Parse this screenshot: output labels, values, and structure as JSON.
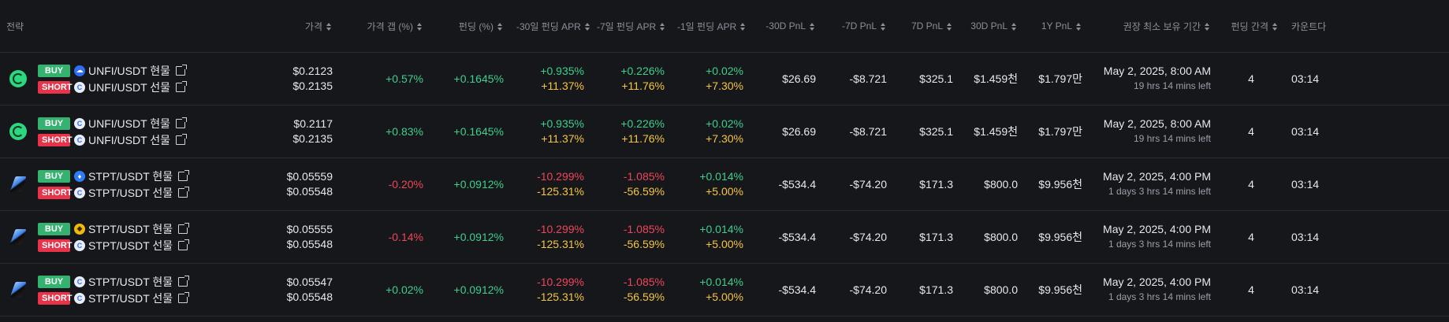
{
  "headers": {
    "strategy": "전략",
    "price": "가격",
    "price_gap": "가격 갭 (%)",
    "funding": "펀딩 (%)",
    "apr30": "-30일 펀딩 APR",
    "apr7": "-7일 펀딩 APR",
    "apr1": "-1일 펀딩 APR",
    "pnl30neg": "-30D PnL",
    "pnl7neg": "-7D PnL",
    "pnl7": "7D PnL",
    "pnl30": "30D PnL",
    "pnl1y": "1Y PnL",
    "hold": "권장 최소 보유 기간",
    "interval": "펀딩 간격",
    "countdown": "카운트다"
  },
  "rows": [
    {
      "coin_icon": "unfi-coin-icon",
      "buy_badge": "BUY",
      "short_badge": "SHORT",
      "buy_exchange_icon": "cloud-exchange-icon",
      "short_exchange_icon": "futures-exchange-icon",
      "buy_pair": "UNFI/USDT 현물",
      "short_pair": "UNFI/USDT 선물",
      "price_buy": "$0.2123",
      "price_short": "$0.2135",
      "gap": "+0.57%",
      "funding": "+0.1645%",
      "apr30_a": "+0.935%",
      "apr30_b": "+11.37%",
      "apr7_a": "+0.226%",
      "apr7_b": "+11.76%",
      "apr1_a": "+0.02%",
      "apr1_b": "+7.30%",
      "pnl30neg": "$26.69",
      "pnl7neg": "-$8.721",
      "pnl7": "$325.1",
      "pnl30": "$1.459천",
      "pnl1y": "$1.797만",
      "hold_date": "May 2, 2025, 8:00 AM",
      "hold_left": "19 hrs 14 mins left",
      "interval": "4",
      "countdown": "03:14"
    },
    {
      "coin_icon": "unfi-coin-icon",
      "buy_badge": "BUY",
      "short_badge": "SHORT",
      "buy_exchange_icon": "futures-exchange-icon",
      "short_exchange_icon": "futures-exchange-icon",
      "buy_pair": "UNFI/USDT 현물",
      "short_pair": "UNFI/USDT 선물",
      "price_buy": "$0.2117",
      "price_short": "$0.2135",
      "gap": "+0.83%",
      "funding": "+0.1645%",
      "apr30_a": "+0.935%",
      "apr30_b": "+11.37%",
      "apr7_a": "+0.226%",
      "apr7_b": "+11.76%",
      "apr1_a": "+0.02%",
      "apr1_b": "+7.30%",
      "pnl30neg": "$26.69",
      "pnl7neg": "-$8.721",
      "pnl7": "$325.1",
      "pnl30": "$1.459천",
      "pnl1y": "$1.797만",
      "hold_date": "May 2, 2025, 8:00 AM",
      "hold_left": "19 hrs 14 mins left",
      "interval": "4",
      "countdown": "03:14"
    },
    {
      "coin_icon": "stpt-coin-icon",
      "buy_badge": "BUY",
      "short_badge": "SHORT",
      "buy_exchange_icon": "flame-exchange-icon",
      "short_exchange_icon": "futures-exchange-icon",
      "buy_pair": "STPT/USDT 현물",
      "short_pair": "STPT/USDT 선물",
      "price_buy": "$0.05559",
      "price_short": "$0.05548",
      "gap": "-0.20%",
      "funding": "+0.0912%",
      "apr30_a": "-10.299%",
      "apr30_b": "-125.31%",
      "apr7_a": "-1.085%",
      "apr7_b": "-56.59%",
      "apr1_a": "+0.014%",
      "apr1_b": "+5.00%",
      "pnl30neg": "-$534.4",
      "pnl7neg": "-$74.20",
      "pnl7": "$171.3",
      "pnl30": "$800.0",
      "pnl1y": "$9.956천",
      "hold_date": "May 2, 2025, 4:00 PM",
      "hold_left": "1 days 3 hrs 14 mins left",
      "interval": "4",
      "countdown": "03:14"
    },
    {
      "coin_icon": "stpt-coin-icon",
      "buy_badge": "BUY",
      "short_badge": "SHORT",
      "buy_exchange_icon": "yellow-exchange-icon",
      "short_exchange_icon": "futures-exchange-icon",
      "buy_pair": "STPT/USDT 현물",
      "short_pair": "STPT/USDT 선물",
      "price_buy": "$0.05555",
      "price_short": "$0.05548",
      "gap": "-0.14%",
      "funding": "+0.0912%",
      "apr30_a": "-10.299%",
      "apr30_b": "-125.31%",
      "apr7_a": "-1.085%",
      "apr7_b": "-56.59%",
      "apr1_a": "+0.014%",
      "apr1_b": "+5.00%",
      "pnl30neg": "-$534.4",
      "pnl7neg": "-$74.20",
      "pnl7": "$171.3",
      "pnl30": "$800.0",
      "pnl1y": "$9.956천",
      "hold_date": "May 2, 2025, 4:00 PM",
      "hold_left": "1 days 3 hrs 14 mins left",
      "interval": "4",
      "countdown": "03:14"
    },
    {
      "coin_icon": "stpt-coin-icon",
      "buy_badge": "BUY",
      "short_badge": "SHORT",
      "buy_exchange_icon": "futures-exchange-icon",
      "short_exchange_icon": "futures-exchange-icon",
      "buy_pair": "STPT/USDT 현물",
      "short_pair": "STPT/USDT 선물",
      "price_buy": "$0.05547",
      "price_short": "$0.05548",
      "gap": "+0.02%",
      "funding": "+0.0912%",
      "apr30_a": "-10.299%",
      "apr30_b": "-125.31%",
      "apr7_a": "-1.085%",
      "apr7_b": "-56.59%",
      "apr1_a": "+0.014%",
      "apr1_b": "+5.00%",
      "pnl30neg": "-$534.4",
      "pnl7neg": "-$74.20",
      "pnl7": "$171.3",
      "pnl30": "$800.0",
      "pnl1y": "$9.956천",
      "hold_date": "May 2, 2025, 4:00 PM",
      "hold_left": "1 days 3 hrs 14 mins left",
      "interval": "4",
      "countdown": "03:14"
    }
  ],
  "colors": {
    "positive": "#3ecf8e",
    "negative": "#f0455a",
    "apr_secondary": "#f4c542",
    "background": "#16171b"
  }
}
